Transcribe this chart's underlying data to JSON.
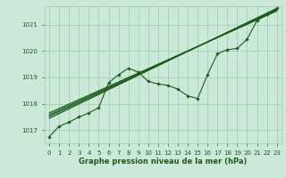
{
  "background_color": "#cce8d8",
  "plot_bg_color": "#cce8d8",
  "grid_color": "#99ccb0",
  "line_color": "#1a5c1a",
  "title": "Graphe pression niveau de la mer (hPa)",
  "ylim": [
    1016.5,
    1021.7
  ],
  "xlim": [
    -0.5,
    23.5
  ],
  "yticks": [
    1017,
    1018,
    1019,
    1020,
    1021
  ],
  "xticks": [
    0,
    1,
    2,
    3,
    4,
    5,
    6,
    7,
    8,
    9,
    10,
    11,
    12,
    13,
    14,
    15,
    16,
    17,
    18,
    19,
    20,
    21,
    22,
    23
  ],
  "main_data": [
    1016.75,
    1017.15,
    1017.3,
    1017.5,
    1017.65,
    1017.85,
    1018.8,
    1019.1,
    1019.35,
    1019.2,
    1018.85,
    1018.75,
    1018.7,
    1018.55,
    1018.3,
    1018.2,
    1019.1,
    1019.9,
    1020.05,
    1020.1,
    1020.45,
    1021.15,
    1021.4,
    1021.62
  ],
  "trend_lines": [
    {
      "x0": 0,
      "y0": 1017.45,
      "x1": 23,
      "y1": 1021.62
    },
    {
      "x0": 0,
      "y0": 1017.52,
      "x1": 23,
      "y1": 1021.58
    },
    {
      "x0": 0,
      "y0": 1017.58,
      "x1": 23,
      "y1": 1021.55
    },
    {
      "x0": 0,
      "y0": 1017.65,
      "x1": 23,
      "y1": 1021.52
    }
  ]
}
